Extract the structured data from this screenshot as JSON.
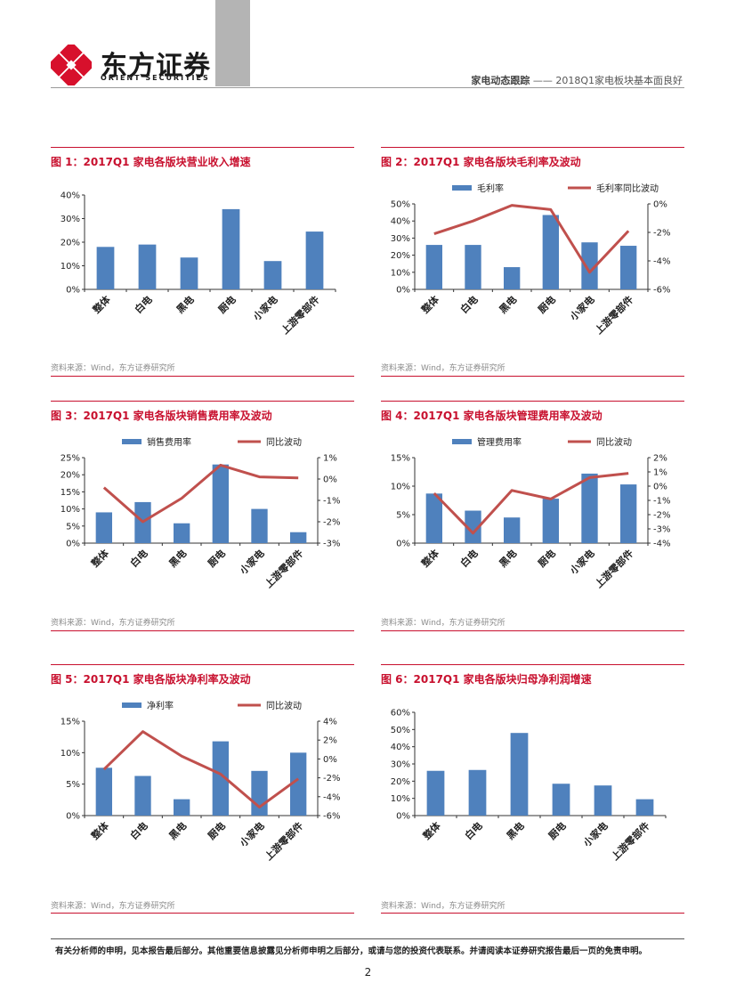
{
  "header": {
    "brand_cn": "东方证券",
    "brand_en": "ORIENT SECURITIES",
    "report_type": "家电动态跟踪",
    "separator": "——",
    "report_title": "2018Q1家电板块基本面良好"
  },
  "colors": {
    "bar": "#4f81bd",
    "line": "#c0504d",
    "accent": "#c8102e"
  },
  "charts": [
    {
      "title": "图 1：2017Q1 家电各版块营业收入增速",
      "source": "资料来源：Wind，东方证券研究所",
      "chart_data": {
        "type": "bar",
        "categories": [
          "整体",
          "白电",
          "黑电",
          "厨电",
          "小家电",
          "上游零部件"
        ],
        "series": [
          {
            "values": [
              18,
              19,
              13.5,
              34,
              12,
              24.5
            ],
            "axis": "left"
          }
        ],
        "y_left": {
          "min": 0,
          "max": 40,
          "ticks": [
            "0%",
            "10%",
            "20%",
            "30%",
            "40%"
          ]
        }
      }
    },
    {
      "title": "图 2：2017Q1 家电各版块毛利率及波动",
      "source": "资料来源：Wind，东方证券研究所",
      "chart_data": {
        "type": "bar+line",
        "categories": [
          "整体",
          "白电",
          "黑电",
          "厨电",
          "小家电",
          "上游零部件"
        ],
        "series": [
          {
            "name": "毛利率",
            "type": "bar",
            "axis": "left",
            "values": [
              26,
              26,
              13,
              43.5,
              27.5,
              25.5
            ]
          },
          {
            "name": "毛利率同比波动",
            "type": "line",
            "axis": "right",
            "values": [
              -2.1,
              -1.2,
              -0.1,
              -0.4,
              -4.8,
              -1.9
            ]
          }
        ],
        "y_left": {
          "min": 0,
          "max": 50,
          "ticks": [
            "0%",
            "10%",
            "20%",
            "30%",
            "40%",
            "50%"
          ]
        },
        "y_right": {
          "min": -6,
          "max": 0,
          "ticks": [
            "-6%",
            "-4%",
            "-2%",
            "0%"
          ]
        }
      }
    },
    {
      "title": "图 3：2017Q1 家电各版块销售费用率及波动",
      "source": "资料来源：Wind，东方证券研究所",
      "chart_data": {
        "type": "bar+line",
        "categories": [
          "整体",
          "白电",
          "黑电",
          "厨电",
          "小家电",
          "上游零部件"
        ],
        "series": [
          {
            "name": "销售费用率",
            "type": "bar",
            "axis": "left",
            "values": [
              9,
              12,
              5.8,
              23,
              10,
              3.2
            ]
          },
          {
            "name": "同比波动",
            "type": "line",
            "axis": "right",
            "values": [
              -0.4,
              -2.0,
              -0.9,
              0.65,
              0.1,
              0.05
            ]
          }
        ],
        "y_left": {
          "min": 0,
          "max": 25,
          "ticks": [
            "0%",
            "5%",
            "10%",
            "15%",
            "20%",
            "25%"
          ]
        },
        "y_right": {
          "min": -3,
          "max": 1,
          "ticks": [
            "-3%",
            "-2%",
            "-1%",
            "0%",
            "1%"
          ]
        }
      }
    },
    {
      "title": "图 4：2017Q1 家电各版块管理费用率及波动",
      "source": "资料来源：Wind，东方证券研究所",
      "chart_data": {
        "type": "bar+line",
        "categories": [
          "整体",
          "白电",
          "黑电",
          "厨电",
          "小家电",
          "上游零部件"
        ],
        "series": [
          {
            "name": "管理费用率",
            "type": "bar",
            "axis": "left",
            "values": [
              8.7,
              5.7,
              4.5,
              7.8,
              12.2,
              10.3
            ]
          },
          {
            "name": "同比波动",
            "type": "line",
            "axis": "right",
            "values": [
              -0.5,
              -3.3,
              -0.3,
              -0.9,
              0.6,
              0.9
            ]
          }
        ],
        "y_left": {
          "min": 0,
          "max": 15,
          "ticks": [
            "0%",
            "5%",
            "10%",
            "15%"
          ]
        },
        "y_right": {
          "min": -4,
          "max": 2,
          "ticks": [
            "-4%",
            "-3%",
            "-2%",
            "-1%",
            "0%",
            "1%",
            "2%"
          ]
        }
      }
    },
    {
      "title": "图 5：2017Q1 家电各版块净利率及波动",
      "source": "资料来源：Wind，东方证券研究所",
      "chart_data": {
        "type": "bar+line",
        "categories": [
          "整体",
          "白电",
          "黑电",
          "厨电",
          "小家电",
          "上游零部件"
        ],
        "series": [
          {
            "name": "净利率",
            "type": "bar",
            "axis": "left",
            "values": [
              7.6,
              6.3,
              2.6,
              11.8,
              7.1,
              10
            ]
          },
          {
            "name": "同比波动",
            "type": "line",
            "axis": "right",
            "values": [
              -1.1,
              2.9,
              0.3,
              -1.6,
              -5.1,
              -2.1
            ]
          }
        ],
        "y_left": {
          "min": 0,
          "max": 15,
          "ticks": [
            "0%",
            "5%",
            "10%",
            "15%"
          ]
        },
        "y_right": {
          "min": -6,
          "max": 4,
          "ticks": [
            "-6%",
            "-4%",
            "-2%",
            "0%",
            "2%",
            "4%"
          ]
        }
      }
    },
    {
      "title": "图 6：2017Q1 家电各版块归母净利润增速",
      "source": "资料来源：Wind，东方证券研究所",
      "chart_data": {
        "type": "bar",
        "categories": [
          "整体",
          "白电",
          "黑电",
          "厨电",
          "小家电",
          "上游零部件"
        ],
        "series": [
          {
            "values": [
              26,
              26.5,
              48,
              18.5,
              17.5,
              9.5
            ],
            "axis": "left"
          }
        ],
        "y_left": {
          "min": 0,
          "max": 60,
          "ticks": [
            "0%",
            "10%",
            "20%",
            "30%",
            "40%",
            "50%",
            "60%"
          ]
        }
      }
    }
  ],
  "footer": {
    "disclaimer": "有关分析师的申明，见本报告最后部分。其他重要信息披露见分析师申明之后部分，或请与您的投资代表联系。并请阅读本证券研究报告最后一页的免责申明。",
    "page_number": "2"
  }
}
